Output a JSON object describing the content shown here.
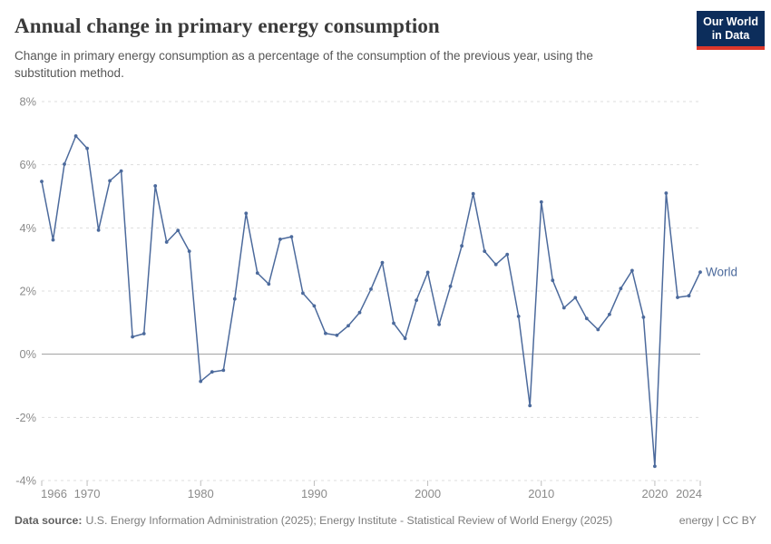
{
  "header": {
    "title": "Annual change in primary energy consumption",
    "subtitle": "Change in primary energy consumption as a percentage of the consumption of the previous year, using the substitution method.",
    "logo": {
      "line1": "Our World",
      "line2": "in Data",
      "bg": "#0c2d5b",
      "accent": "#dc372b"
    }
  },
  "chart_data": {
    "type": "line",
    "title": "Annual change in primary energy consumption",
    "xlabel": "",
    "ylabel": "",
    "unit": "%",
    "ylim": [
      -4,
      8
    ],
    "yticks": [
      -4,
      -2,
      0,
      2,
      4,
      6,
      8
    ],
    "xticks": [
      1966,
      1970,
      1980,
      1990,
      2000,
      2010,
      2020,
      2024
    ],
    "grid": true,
    "legend_position": "end-of-line",
    "colors": {
      "line": "#4C6A9C",
      "gridline": "#dddddd",
      "zeroline": "#9e9e9e",
      "axis_text": "#8b8b8b"
    },
    "series": [
      {
        "name": "World",
        "color": "#4C6A9C",
        "x": [
          1966,
          1967,
          1968,
          1969,
          1970,
          1971,
          1972,
          1973,
          1974,
          1975,
          1976,
          1977,
          1978,
          1979,
          1980,
          1981,
          1982,
          1983,
          1984,
          1985,
          1986,
          1987,
          1988,
          1989,
          1990,
          1991,
          1992,
          1993,
          1994,
          1995,
          1996,
          1997,
          1998,
          1999,
          2000,
          2001,
          2002,
          2003,
          2004,
          2005,
          2006,
          2007,
          2008,
          2009,
          2010,
          2011,
          2012,
          2013,
          2014,
          2015,
          2016,
          2017,
          2018,
          2019,
          2020,
          2021,
          2022,
          2023,
          2024
        ],
        "values": [
          5.47,
          3.62,
          6.02,
          6.91,
          6.52,
          3.93,
          5.49,
          5.8,
          0.55,
          0.65,
          5.33,
          3.55,
          3.92,
          3.26,
          -0.86,
          -0.56,
          -0.51,
          1.75,
          4.46,
          2.57,
          2.22,
          3.64,
          3.72,
          1.93,
          1.53,
          0.66,
          0.6,
          0.9,
          1.32,
          2.06,
          2.9,
          0.98,
          0.5,
          1.71,
          2.59,
          0.94,
          2.15,
          3.43,
          5.08,
          3.26,
          2.84,
          3.16,
          1.2,
          -1.63,
          4.82,
          2.34,
          1.47,
          1.79,
          1.13,
          0.78,
          1.26,
          2.08,
          2.65,
          1.17,
          -3.55,
          5.1,
          1.8,
          1.85,
          2.6
        ]
      }
    ]
  },
  "footer": {
    "datasource_label": "Data source:",
    "datasource_text": "U.S. Energy Information Administration (2025); Energy Institute - Statistical Review of World Energy (2025)",
    "license": "energy | CC BY"
  }
}
